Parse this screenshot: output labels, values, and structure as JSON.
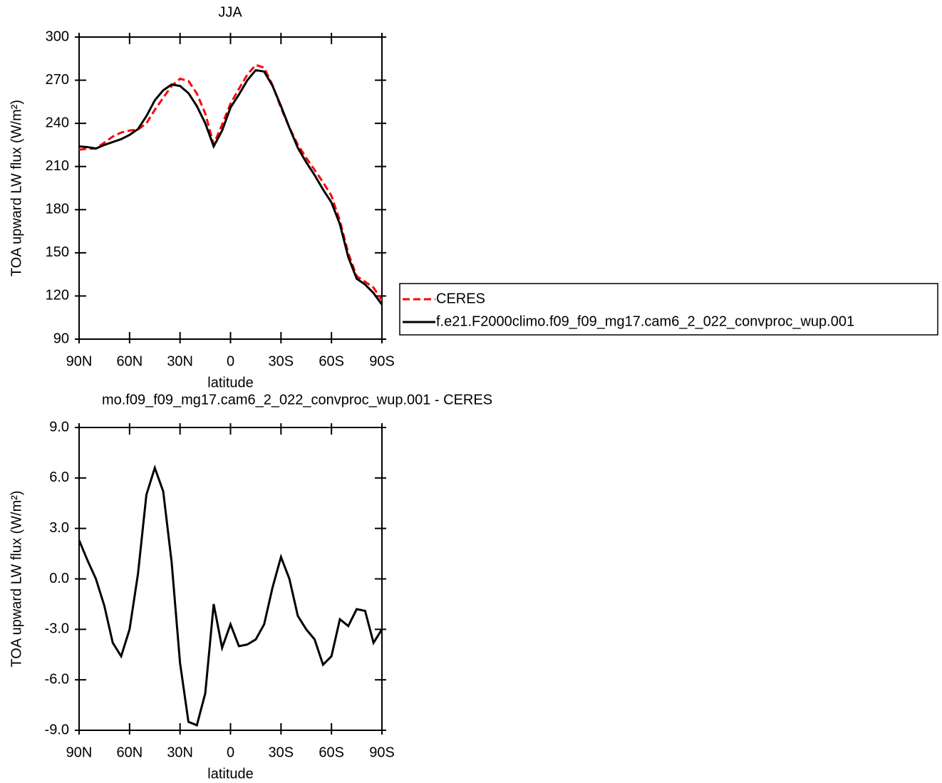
{
  "chart_data": [
    {
      "type": "line",
      "title": "JJA",
      "xlabel": "latitude",
      "ylabel": "TOA upward LW flux (W/m²)",
      "x": [
        90,
        85,
        80,
        75,
        70,
        65,
        60,
        55,
        50,
        45,
        40,
        35,
        30,
        25,
        20,
        15,
        10,
        5,
        0,
        -5,
        -10,
        -15,
        -20,
        -25,
        -30,
        -35,
        -40,
        -45,
        -50,
        -55,
        -60,
        -65,
        -70,
        -75,
        -80,
        -85,
        -90
      ],
      "series": [
        {
          "name": "CERES",
          "color": "#ff0000",
          "line_style": "dashed",
          "values": [
            221.7,
            222.4,
            222.5,
            226.6,
            230.8,
            233.6,
            235,
            235.7,
            240,
            249.4,
            257.8,
            266,
            271,
            269.5,
            260.7,
            246.8,
            225.5,
            239.1,
            253.7,
            264,
            273.9,
            280.6,
            278.7,
            266.5,
            250.7,
            237,
            225.2,
            216,
            207.6,
            199.1,
            189.6,
            172.4,
            149.8,
            133.8,
            129.9,
            125.8,
            117
          ]
        },
        {
          "name": "f.e21.F2000climo.f09_f09_mg17.cam6_2_022_convproc_wup.001",
          "color": "#000000",
          "line_style": "solid",
          "values": [
            224,
            223.5,
            222.5,
            225,
            227,
            229,
            232,
            236,
            245,
            256,
            263,
            267,
            266,
            261,
            252,
            240,
            224,
            235,
            251,
            260,
            270,
            277,
            276,
            266,
            252,
            237,
            223,
            213,
            204,
            194,
            185,
            170,
            147,
            132,
            128,
            122,
            114
          ]
        }
      ],
      "xlim": [
        90,
        -90
      ],
      "xticks": [
        {
          "value": 90,
          "label": "90N"
        },
        {
          "value": 60,
          "label": "60N"
        },
        {
          "value": 30,
          "label": "30N"
        },
        0,
        {
          "value": -30,
          "label": "30S"
        },
        {
          "value": -60,
          "label": "60S"
        },
        {
          "value": -90,
          "label": "90S"
        }
      ],
      "ylim": [
        90,
        300
      ],
      "yticks": [
        90,
        120,
        150,
        180,
        210,
        240,
        270,
        300
      ],
      "legend": "right"
    },
    {
      "type": "line",
      "title": "mo.f09_f09_mg17.cam6_2_022_convproc_wup.001 - CERES",
      "xlabel": "latitude",
      "ylabel": "TOA upward LW flux (W/m²)",
      "x": [
        90,
        85,
        80,
        75,
        70,
        65,
        60,
        55,
        50,
        45,
        40,
        35,
        30,
        25,
        20,
        15,
        10,
        5,
        0,
        -5,
        -10,
        -15,
        -20,
        -25,
        -30,
        -35,
        -40,
        -45,
        -50,
        -55,
        -60,
        -65,
        -70,
        -75,
        -80,
        -85,
        -90
      ],
      "series": [
        {
          "color": "#000000",
          "line_style": "solid",
          "values": [
            2.3,
            1.1,
            0,
            -1.6,
            -3.8,
            -4.6,
            -3,
            0.3,
            5,
            6.6,
            5.2,
            1,
            -5,
            -8.5,
            -8.7,
            -6.8,
            -1.5,
            -4.1,
            -2.7,
            -4,
            -3.9,
            -3.6,
            -2.7,
            -0.5,
            1.3,
            0,
            -2.2,
            -3,
            -3.6,
            -5.1,
            -4.6,
            -2.4,
            -2.8,
            -1.8,
            -1.9,
            -3.8,
            -3
          ]
        }
      ],
      "xlim": [
        90,
        -90
      ],
      "xticks": [
        {
          "value": 90,
          "label": "90N"
        },
        {
          "value": 60,
          "label": "60N"
        },
        {
          "value": 30,
          "label": "30N"
        },
        0,
        {
          "value": -30,
          "label": "30S"
        },
        {
          "value": -60,
          "label": "60S"
        },
        {
          "value": -90,
          "label": "90S"
        }
      ],
      "ylim": [
        -9,
        9
      ],
      "yticks": [
        {
          "value": -9,
          "label": "-9.0"
        },
        {
          "value": -6,
          "label": "-6.0"
        },
        {
          "value": -3,
          "label": "-3.0"
        },
        {
          "value": 0,
          "label": "0.0"
        },
        {
          "value": 3,
          "label": "3.0"
        },
        {
          "value": 6,
          "label": "6.0"
        },
        {
          "value": 9,
          "label": "9.0"
        }
      ]
    }
  ]
}
